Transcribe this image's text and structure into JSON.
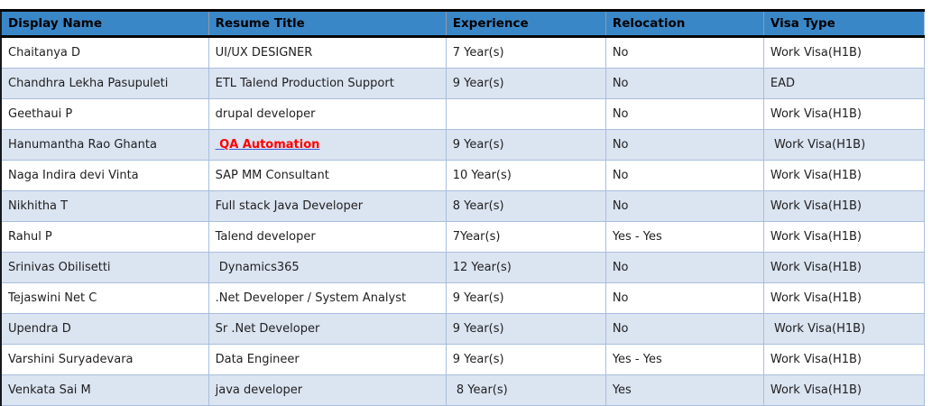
{
  "table": {
    "columns": [
      {
        "key": "display_name",
        "label": "Display Name"
      },
      {
        "key": "resume_title",
        "label": "Resume Title"
      },
      {
        "key": "experience",
        "label": "Experience"
      },
      {
        "key": "relocation",
        "label": "Relocation"
      },
      {
        "key": "visa_type",
        "label": "Visa Type"
      }
    ],
    "rows": [
      {
        "display_name": "Chaitanya D",
        "resume_title": "UI/UX DESIGNER",
        "experience": "7 Year(s)",
        "relocation": "No",
        "visa_type": "Work Visa(H1B)",
        "title_is_link": false
      },
      {
        "display_name": "Chandhra Lekha Pasupuleti",
        "resume_title": "ETL Talend Production Support",
        "experience": "9 Year(s)",
        "relocation": "No",
        "visa_type": "EAD",
        "title_is_link": false
      },
      {
        "display_name": "Geethaui P",
        "resume_title": "drupal developer",
        "experience": "",
        "relocation": "No",
        "visa_type": "Work Visa(H1B)",
        "title_is_link": false
      },
      {
        "display_name": "Hanumantha Rao Ghanta",
        "resume_title": " QA Automation",
        "experience": "9 Year(s)",
        "relocation": "No",
        "visa_type": " Work Visa(H1B)",
        "title_is_link": true
      },
      {
        "display_name": "Naga Indira devi Vinta",
        "resume_title": "SAP MM Consultant",
        "experience": "10 Year(s)",
        "relocation": "No",
        "visa_type": "Work Visa(H1B)",
        "title_is_link": false
      },
      {
        "display_name": "Nikhitha T",
        "resume_title": "Full stack Java Developer",
        "experience": "8 Year(s)",
        "relocation": "No",
        "visa_type": "Work Visa(H1B)",
        "title_is_link": false
      },
      {
        "display_name": "Rahul P",
        "resume_title": "Talend developer",
        "experience": "7Year(s)",
        "relocation": "Yes - Yes",
        "visa_type": "Work Visa(H1B)",
        "title_is_link": false
      },
      {
        "display_name": "Srinivas Obilisetti",
        "resume_title": " Dynamics365",
        "experience": "12 Year(s)",
        "relocation": "No",
        "visa_type": "Work Visa(H1B)",
        "title_is_link": false
      },
      {
        "display_name": "Tejaswini Net C",
        "resume_title": ".Net Developer / System Analyst",
        "experience": "9 Year(s)",
        "relocation": "No",
        "visa_type": "Work Visa(H1B)",
        "title_is_link": false
      },
      {
        "display_name": "Upendra D",
        "resume_title": "Sr .Net Developer",
        "experience": "9 Year(s)",
        "relocation": "No",
        "visa_type": " Work Visa(H1B)",
        "title_is_link": false
      },
      {
        "display_name": "Varshini Suryadevara",
        "resume_title": "Data Engineer",
        "experience": "9 Year(s)",
        "relocation": "Yes - Yes",
        "visa_type": "Work Visa(H1B)",
        "title_is_link": false
      },
      {
        "display_name": "Venkata Sai M",
        "resume_title": "java developer",
        "experience": " 8 Year(s)",
        "relocation": "Yes",
        "visa_type": "Work Visa(H1B)",
        "title_is_link": false
      }
    ]
  },
  "colors": {
    "header_bg": "#3a87c8",
    "header_border": "#050505",
    "alt_row_bg": "#dbe4f1",
    "grid_border": "#a9bedd",
    "link_text": "#ff0000",
    "link_underline": "#3b5ed6"
  }
}
